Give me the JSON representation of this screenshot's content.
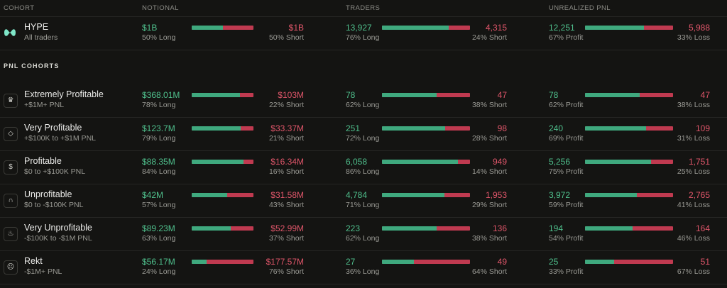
{
  "header": {
    "cohort": "COHORT",
    "notional": "NOTIONAL",
    "traders": "TRADERS",
    "unrealized": "UNREALIZED PNL"
  },
  "section_title": "PNL COHORTS",
  "colors": {
    "long": "#3fa97e",
    "short": "#c03a50",
    "green_text": "#4fbf8c",
    "red_text": "#e0566a"
  },
  "rows": [
    {
      "icon": "hype-logo-icon",
      "name": "HYPE",
      "sub": "All traders",
      "notional": {
        "left": "$1B",
        "left_label": "50% Long",
        "right": "$1B",
        "right_label": "50% Short",
        "ratio": 0.5
      },
      "traders": {
        "left": "13,927",
        "left_label": "76% Long",
        "right": "4,315",
        "right_label": "24% Short",
        "ratio": 0.76
      },
      "pnl": {
        "left": "12,251",
        "left_label": "67% Profit",
        "right": "5,988",
        "right_label": "33% Loss",
        "ratio": 0.67
      }
    },
    {
      "icon": "crown-icon",
      "glyph": "♛",
      "name": "Extremely Profitable",
      "sub": "+$1M+ PNL",
      "notional": {
        "left": "$368.01M",
        "left_label": "78% Long",
        "right": "$103M",
        "right_label": "22% Short",
        "ratio": 0.78
      },
      "traders": {
        "left": "78",
        "left_label": "62% Long",
        "right": "47",
        "right_label": "38% Short",
        "ratio": 0.62
      },
      "pnl": {
        "left": "78",
        "left_label": "62% Profit",
        "right": "47",
        "right_label": "38% Loss",
        "ratio": 0.62
      }
    },
    {
      "icon": "diamond-icon",
      "glyph": "◇",
      "name": "Very Profitable",
      "sub": "+$100K to +$1M PNL",
      "notional": {
        "left": "$123.7M",
        "left_label": "79% Long",
        "right": "$33.37M",
        "right_label": "21% Short",
        "ratio": 0.79
      },
      "traders": {
        "left": "251",
        "left_label": "72% Long",
        "right": "98",
        "right_label": "28% Short",
        "ratio": 0.72
      },
      "pnl": {
        "left": "240",
        "left_label": "69% Profit",
        "right": "109",
        "right_label": "31% Loss",
        "ratio": 0.69
      }
    },
    {
      "icon": "money-bag-icon",
      "glyph": "$",
      "name": "Profitable",
      "sub": "$0 to +$100K PNL",
      "notional": {
        "left": "$88.35M",
        "left_label": "84% Long",
        "right": "$16.34M",
        "right_label": "16% Short",
        "ratio": 0.84
      },
      "traders": {
        "left": "6,058",
        "left_label": "86% Long",
        "right": "949",
        "right_label": "14% Short",
        "ratio": 0.86
      },
      "pnl": {
        "left": "5,256",
        "left_label": "75% Profit",
        "right": "1,751",
        "right_label": "25% Loss",
        "ratio": 0.75
      }
    },
    {
      "icon": "ghost-icon",
      "glyph": "∩",
      "name": "Unprofitable",
      "sub": "$0 to -$100K PNL",
      "notional": {
        "left": "$42M",
        "left_label": "57% Long",
        "right": "$31.58M",
        "right_label": "43% Short",
        "ratio": 0.57
      },
      "traders": {
        "left": "4,784",
        "left_label": "71% Long",
        "right": "1,953",
        "right_label": "29% Short",
        "ratio": 0.71
      },
      "pnl": {
        "left": "3,972",
        "left_label": "59% Profit",
        "right": "2,765",
        "right_label": "41% Loss",
        "ratio": 0.59
      }
    },
    {
      "icon": "flame-icon",
      "glyph": "♨",
      "name": "Very Unprofitable",
      "sub": "-$100K to -$1M PNL",
      "notional": {
        "left": "$89.23M",
        "left_label": "63% Long",
        "right": "$52.99M",
        "right_label": "37% Short",
        "ratio": 0.63
      },
      "traders": {
        "left": "223",
        "left_label": "62% Long",
        "right": "136",
        "right_label": "38% Short",
        "ratio": 0.62
      },
      "pnl": {
        "left": "194",
        "left_label": "54% Profit",
        "right": "164",
        "right_label": "46% Loss",
        "ratio": 0.54
      }
    },
    {
      "icon": "skull-icon",
      "glyph": "☹",
      "name": "Rekt",
      "sub": "-$1M+ PNL",
      "notional": {
        "left": "$56.17M",
        "left_label": "24% Long",
        "right": "$177.57M",
        "right_label": "76% Short",
        "ratio": 0.24
      },
      "traders": {
        "left": "27",
        "left_label": "36% Long",
        "right": "49",
        "right_label": "64% Short",
        "ratio": 0.36
      },
      "pnl": {
        "left": "25",
        "left_label": "33% Profit",
        "right": "51",
        "right_label": "67% Loss",
        "ratio": 0.33
      }
    }
  ]
}
